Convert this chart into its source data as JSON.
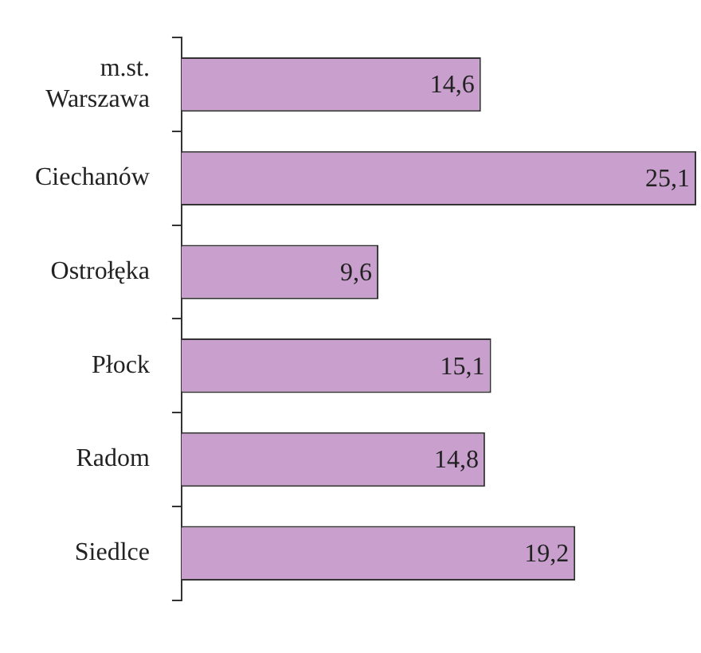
{
  "chart_data": {
    "type": "bar",
    "orientation": "horizontal",
    "categories": [
      "m.st. Warszawa",
      "Ciechanów",
      "Ostrołęka",
      "Płock",
      "Radom",
      "Siedlce"
    ],
    "values": [
      14.6,
      25.1,
      9.6,
      15.1,
      14.8,
      19.2
    ],
    "value_labels": [
      "14,6",
      "25,1",
      "9,6",
      "15,1",
      "14,8",
      "19,2"
    ],
    "color": "#c9a0cd",
    "grid": false,
    "legend": false,
    "tick_labels": "y"
  }
}
